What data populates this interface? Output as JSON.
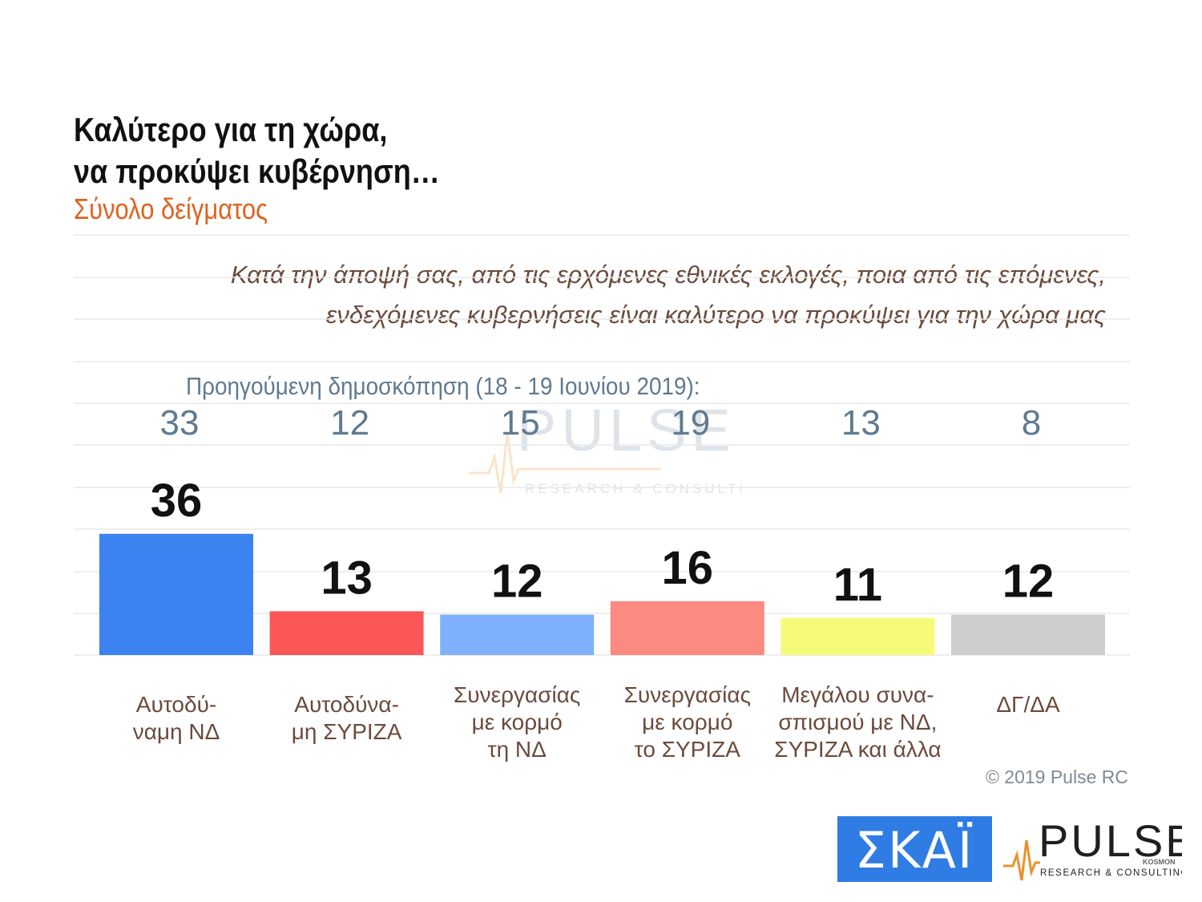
{
  "header": {
    "title_line1": "Καλύτερο για τη χώρα,",
    "title_line2": "να προκύψει κυβέρνηση…",
    "subtitle": "Σύνολο δείγματος",
    "question_line1": "Κατά την άποψή σας, από τις ερχόμενες εθνικές εκλογές, ποια από τις επόμενες,",
    "question_line2": "ενδεχόμενες κυβερνήσεις είναι καλύτερο να προκύψει για την χώρα μας"
  },
  "chart_data": {
    "type": "bar",
    "title": "Καλύτερο για τη χώρα, να προκύψει κυβέρνηση…",
    "subtitle": "Σύνολο δείγματος",
    "previous_poll_label": "Προηγούμενη δημοσκόπηση (18 - 19 Ιουνίου 2019):",
    "categories": [
      [
        "Αυτοδύ-",
        "ναμη ΝΔ"
      ],
      [
        "Αυτοδύνα-",
        "μη ΣΥΡΙΖΑ"
      ],
      [
        "Συνεργασίας",
        "με κορμό",
        "τη ΝΔ"
      ],
      [
        "Συνεργασίας",
        "με κορμό",
        "το ΣΥΡΙΖΑ"
      ],
      [
        "Μεγάλου συνα-",
        "σπισμού με ΝΔ,",
        "ΣΥΡΙΖΑ και άλλα"
      ],
      [
        "ΔΓ/ΔΑ"
      ]
    ],
    "values": [
      36,
      13,
      12,
      16,
      11,
      12
    ],
    "previous_values": [
      33,
      12,
      15,
      19,
      13,
      8
    ],
    "colors": [
      "#3c82f0",
      "#fb5656",
      "#7fb0fb",
      "#fb8a80",
      "#f5fb78",
      "#cdcdcd"
    ],
    "ylim": [
      0,
      40
    ],
    "grid": true,
    "legend": "none"
  },
  "footer": {
    "copyright": "© 2019 Pulse RC"
  },
  "logos": {
    "skai": "ΣΚΑΪ",
    "pulse_name": "PULSE",
    "pulse_sub": "RESEARCH & CONSULTING",
    "pulse_tag": "KOSMON"
  }
}
